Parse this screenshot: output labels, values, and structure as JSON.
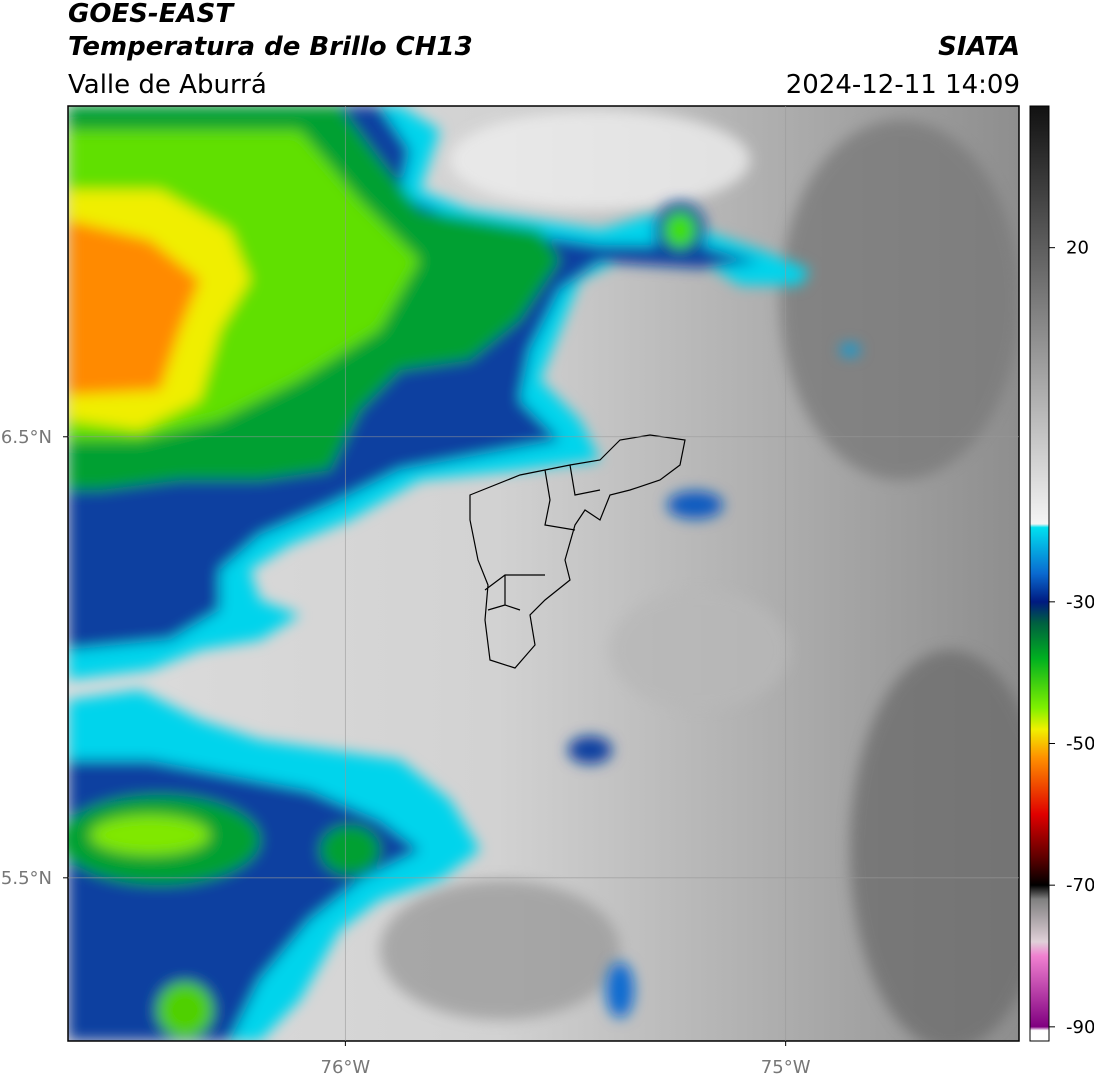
{
  "header": {
    "title": "GOES-EAST",
    "subtitle": "Temperatura de Brillo CH13",
    "region": "Valle de Aburrá",
    "source": "SIATA",
    "datetime": "2024-12-11 14:09"
  },
  "map": {
    "xlim": [
      -76.63,
      -74.47
    ],
    "ylim": [
      5.13,
      7.25
    ],
    "xticks": [
      {
        "value": -76,
        "label": "76°W"
      },
      {
        "value": -75,
        "label": "75°W"
      }
    ],
    "yticks": [
      {
        "value": 6.5,
        "label": "6.5°N"
      },
      {
        "value": 5.5,
        "label": "5.5°N"
      }
    ],
    "grid": true
  },
  "colorbar": {
    "lim": [
      -92,
      40
    ],
    "ticks": [
      20,
      -30,
      -50,
      -70,
      -90
    ],
    "colors": [
      {
        "value": 40,
        "color": "#111111"
      },
      {
        "value": -19,
        "color": "#f4f4f4"
      },
      {
        "value": -19.5,
        "color": "#00e0f0"
      },
      {
        "value": -26,
        "color": "#0a6ad0"
      },
      {
        "value": -30,
        "color": "#001a80"
      },
      {
        "value": -33,
        "color": "#006040"
      },
      {
        "value": -38,
        "color": "#00b020"
      },
      {
        "value": -45,
        "color": "#80f000"
      },
      {
        "value": -48,
        "color": "#f0f000"
      },
      {
        "value": -52,
        "color": "#ff9000"
      },
      {
        "value": -60,
        "color": "#e00000"
      },
      {
        "value": -66,
        "color": "#600000"
      },
      {
        "value": -70,
        "color": "#000000"
      },
      {
        "value": -72,
        "color": "#808080"
      },
      {
        "value": -78,
        "color": "#e0d0d8"
      },
      {
        "value": -80,
        "color": "#f080d0"
      },
      {
        "value": -90,
        "color": "#800080"
      },
      {
        "value": -90.5,
        "color": "#ffffff"
      },
      {
        "value": -92,
        "color": "#ffffff"
      }
    ]
  }
}
